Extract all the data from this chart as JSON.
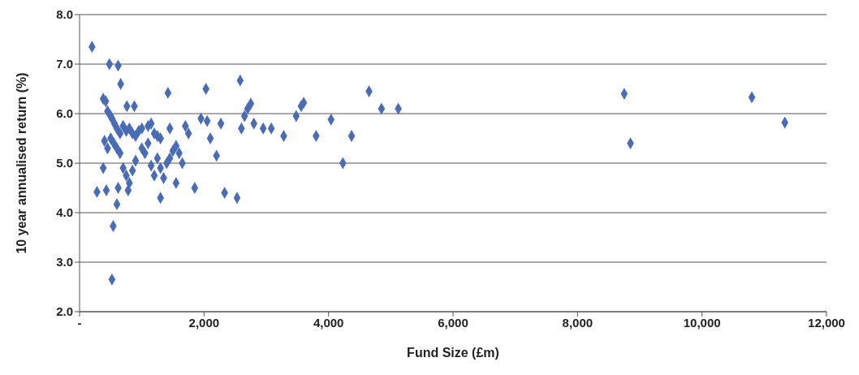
{
  "chart_data": {
    "type": "scatter",
    "xlabel": "Fund Size (£m)",
    "ylabel": "10 year annualised return (%)",
    "xlim": [
      0,
      12000
    ],
    "ylim": [
      2,
      8
    ],
    "xticks": [
      {
        "value": 0,
        "label": "-"
      },
      {
        "value": 2000,
        "label": "2,000"
      },
      {
        "value": 4000,
        "label": "4,000"
      },
      {
        "value": 6000,
        "label": "6,000"
      },
      {
        "value": 8000,
        "label": "8,000"
      },
      {
        "value": 10000,
        "label": "10,000"
      },
      {
        "value": 12000,
        "label": "12,000"
      }
    ],
    "yticks": [
      {
        "value": 2,
        "label": "2.0"
      },
      {
        "value": 3,
        "label": "3.0"
      },
      {
        "value": 4,
        "label": "4.0"
      },
      {
        "value": 5,
        "label": "5.0"
      },
      {
        "value": 6,
        "label": "6.0"
      },
      {
        "value": 7,
        "label": "7.0"
      },
      {
        "value": 8,
        "label": "8.0"
      }
    ],
    "grid": "y",
    "marker": "diamond",
    "legend": false,
    "series": [
      {
        "color": "#4a6cb5",
        "x": [
          200,
          480,
          620,
          660,
          420,
          380,
          760,
          880,
          1420,
          2030,
          2580,
          450,
          500,
          520,
          560,
          600,
          650,
          700,
          750,
          800,
          850,
          900,
          950,
          1000,
          1100,
          1150,
          1200,
          1250,
          1300,
          400,
          450,
          500,
          550,
          600,
          650,
          380,
          700,
          750,
          800,
          850,
          900,
          1000,
          1050,
          1100,
          1150,
          1200,
          1250,
          1300,
          1350,
          1400,
          1450,
          1500,
          1550,
          1600,
          1650,
          1700,
          1750,
          1450,
          280,
          430,
          620,
          780,
          600,
          540,
          520,
          1300,
          1550,
          1850,
          2330,
          2530,
          1950,
          2050,
          2100,
          2200,
          2270,
          2600,
          2650,
          2700,
          2750,
          2800,
          2950,
          3080,
          3280,
          3480,
          3560,
          3600,
          3800,
          4040,
          4230,
          4370,
          4650,
          4850,
          5120,
          8750,
          8850,
          10800,
          11330
        ],
        "values": [
          7.35,
          7.0,
          6.97,
          6.6,
          6.25,
          6.3,
          6.15,
          6.15,
          6.42,
          6.5,
          6.67,
          6.05,
          5.95,
          5.9,
          5.8,
          5.7,
          5.6,
          5.75,
          5.65,
          5.7,
          5.6,
          5.55,
          5.65,
          5.7,
          5.75,
          5.8,
          5.6,
          5.55,
          5.5,
          5.45,
          5.3,
          5.5,
          5.4,
          5.3,
          5.2,
          4.9,
          4.9,
          4.75,
          4.6,
          4.85,
          5.05,
          5.3,
          5.2,
          5.4,
          4.95,
          4.75,
          5.1,
          4.9,
          4.7,
          5.0,
          5.1,
          5.25,
          5.35,
          5.2,
          5.0,
          5.75,
          5.6,
          5.7,
          4.42,
          4.45,
          4.5,
          4.45,
          4.17,
          3.73,
          2.65,
          4.3,
          4.6,
          4.5,
          4.4,
          4.3,
          5.9,
          5.85,
          5.5,
          5.15,
          5.8,
          5.7,
          5.95,
          6.1,
          6.2,
          5.8,
          5.7,
          5.7,
          5.55,
          5.95,
          6.15,
          6.22,
          5.55,
          5.88,
          5.0,
          5.55,
          6.45,
          6.1,
          6.1,
          6.4,
          5.4,
          6.33,
          5.82
        ]
      }
    ]
  }
}
